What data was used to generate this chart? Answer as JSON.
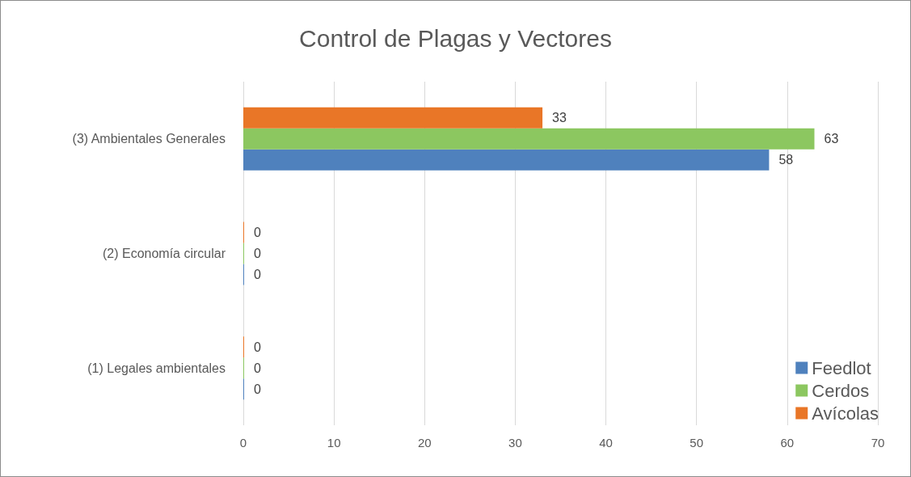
{
  "chart_data": {
    "type": "bar",
    "orientation": "horizontal",
    "title": "Control de Plagas y Vectores",
    "categories": [
      "(3) Ambientales Generales",
      "(2) Economía circular",
      "(1) Legales ambientales"
    ],
    "series": [
      {
        "name": "Feedlot",
        "color": "#4f81bd",
        "values": [
          58,
          0,
          0
        ]
      },
      {
        "name": "Cerdos",
        "color": "#8cc760",
        "values": [
          63,
          0,
          0
        ]
      },
      {
        "name": "Avícolas",
        "color": "#e97627",
        "values": [
          33,
          0,
          0
        ]
      }
    ],
    "xlim": [
      0,
      70
    ],
    "xticks": [
      0,
      10,
      20,
      30,
      40,
      50,
      60,
      70
    ],
    "grid": "x",
    "legend": "bottom right",
    "data_labels": true
  }
}
